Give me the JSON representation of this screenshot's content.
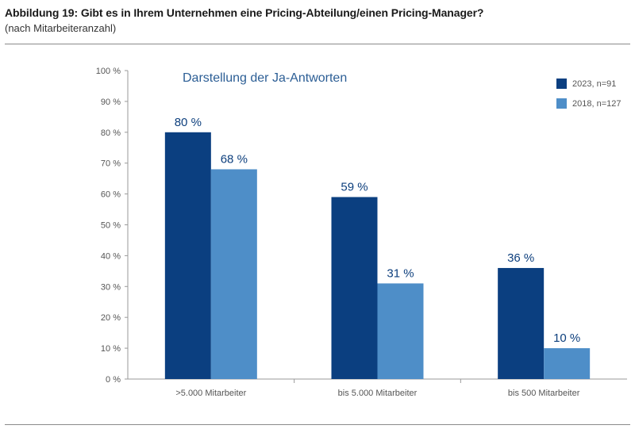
{
  "figure": {
    "title": "Abbildung 19: Gibt es in Ihrem Unternehmen eine Pricing-Abteilung/einen Pricing-Manager?",
    "subtitle": "(nach Mitarbeiteranzahl)"
  },
  "chart_data": {
    "type": "bar",
    "annotation": "Darstellung der Ja-Antworten",
    "categories": [
      ">5.000 Mitarbeiter",
      "bis 5.000 Mitarbeiter",
      "bis 500 Mitarbeiter"
    ],
    "series": [
      {
        "name": "2023, n=91",
        "values": [
          80,
          59,
          36
        ],
        "color": "#0b3f80"
      },
      {
        "name": "2018, n=127",
        "values": [
          68,
          31,
          10
        ],
        "color": "#4e8ec8"
      }
    ],
    "value_labels": [
      [
        "80 %",
        "59 %",
        "36 %"
      ],
      [
        "68 %",
        "31 %",
        "10 %"
      ]
    ],
    "y_ticks": [
      "0 %",
      "10 %",
      "20 %",
      "30 %",
      "40 %",
      "50 %",
      "60 %",
      "70 %",
      "80 %",
      "90 %",
      "100 %"
    ],
    "ylim": [
      0,
      100
    ],
    "grid": false,
    "legend_position": "top-right"
  }
}
